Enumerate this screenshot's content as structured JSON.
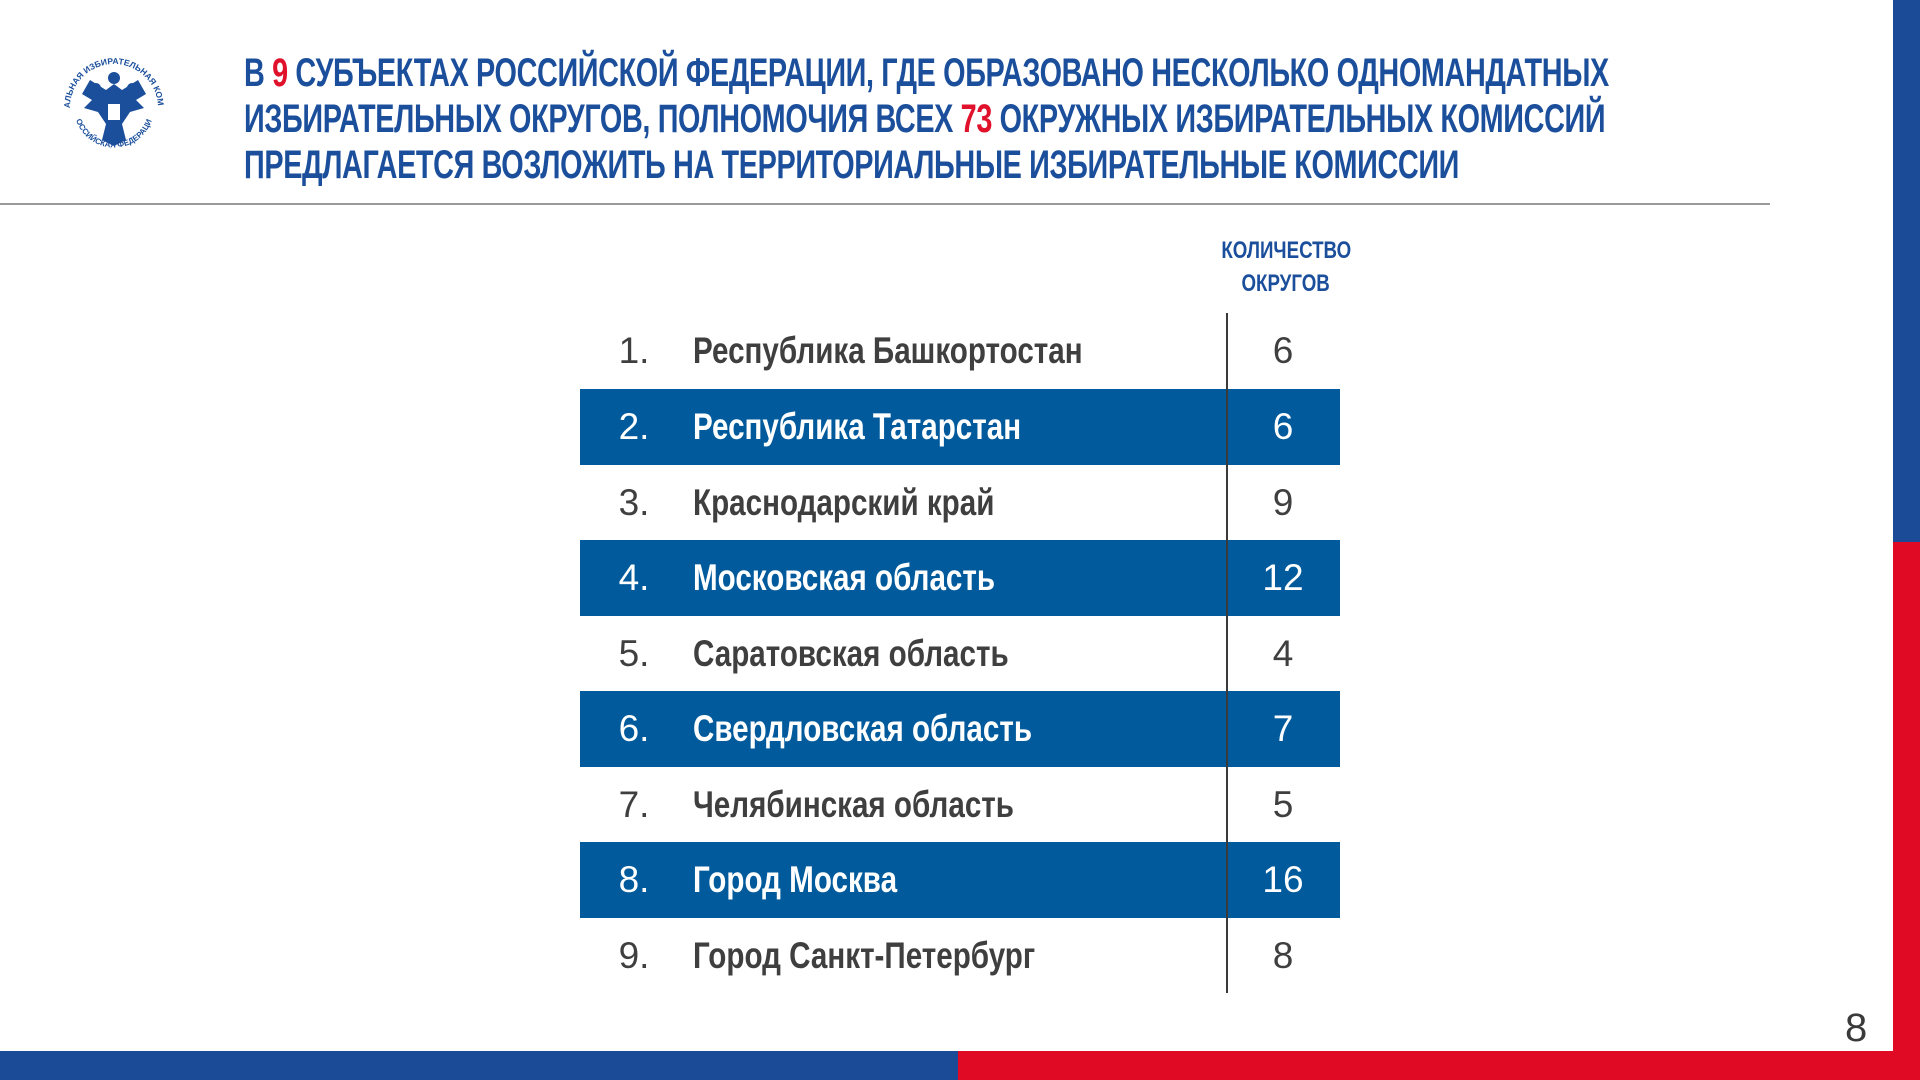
{
  "logo": {
    "text_top": "ЦЕНТРАЛЬНАЯ ИЗБИРАТЕЛЬНАЯ КОМИССИЯ",
    "text_bottom": "РОССИЙСКАЯ ФЕДЕРАЦИЯ"
  },
  "title": {
    "line1_a": "В ",
    "line1_num": "9",
    "line1_b": " СУБЪЕКТАХ РОССИЙСКОЙ ФЕДЕРАЦИИ, ГДЕ ОБРАЗОВАНО НЕСКОЛЬКО ОДНОМАНДАТНЫХ",
    "line2_a": "ИЗБИРАТЕЛЬНЫХ ОКРУГОВ, ПОЛНОМОЧИЯ ВСЕХ ",
    "line2_num": "73",
    "line2_b": " ОКРУЖНЫХ ИЗБИРАТЕЛЬНЫХ КОМИССИЙ",
    "line3": "ПРЕДЛАГАЕТСЯ ВОЗЛОЖИТЬ НА ТЕРРИТОРИАЛЬНЫЕ ИЗБИРАТЕЛЬНЫЕ КОМИССИИ"
  },
  "table": {
    "header_line1": "КОЛИЧЕСТВО",
    "header_line2": "ОКРУГОВ",
    "rows": [
      {
        "num": "1.",
        "name": "Республика Башкортостан",
        "value": "6"
      },
      {
        "num": "2.",
        "name": "Республика Татарстан",
        "value": "6"
      },
      {
        "num": "3.",
        "name": "Краснодарский край",
        "value": "9"
      },
      {
        "num": "4.",
        "name": "Московская область",
        "value": "12"
      },
      {
        "num": "5.",
        "name": "Саратовская область",
        "value": "4"
      },
      {
        "num": "6.",
        "name": "Свердловская область",
        "value": "7"
      },
      {
        "num": "7.",
        "name": "Челябинская область",
        "value": "5"
      },
      {
        "num": "8.",
        "name": "Город Москва",
        "value": "16"
      },
      {
        "num": "9.",
        "name": "Город Санкт-Петербург",
        "value": "8"
      }
    ]
  },
  "page_number": "8",
  "colors": {
    "title_blue": "#1b4f9c",
    "accent_red": "#e0112b",
    "row_blue": "#005a9c",
    "flag_blue": "#1b4a96",
    "flag_red": "#e00a24"
  }
}
